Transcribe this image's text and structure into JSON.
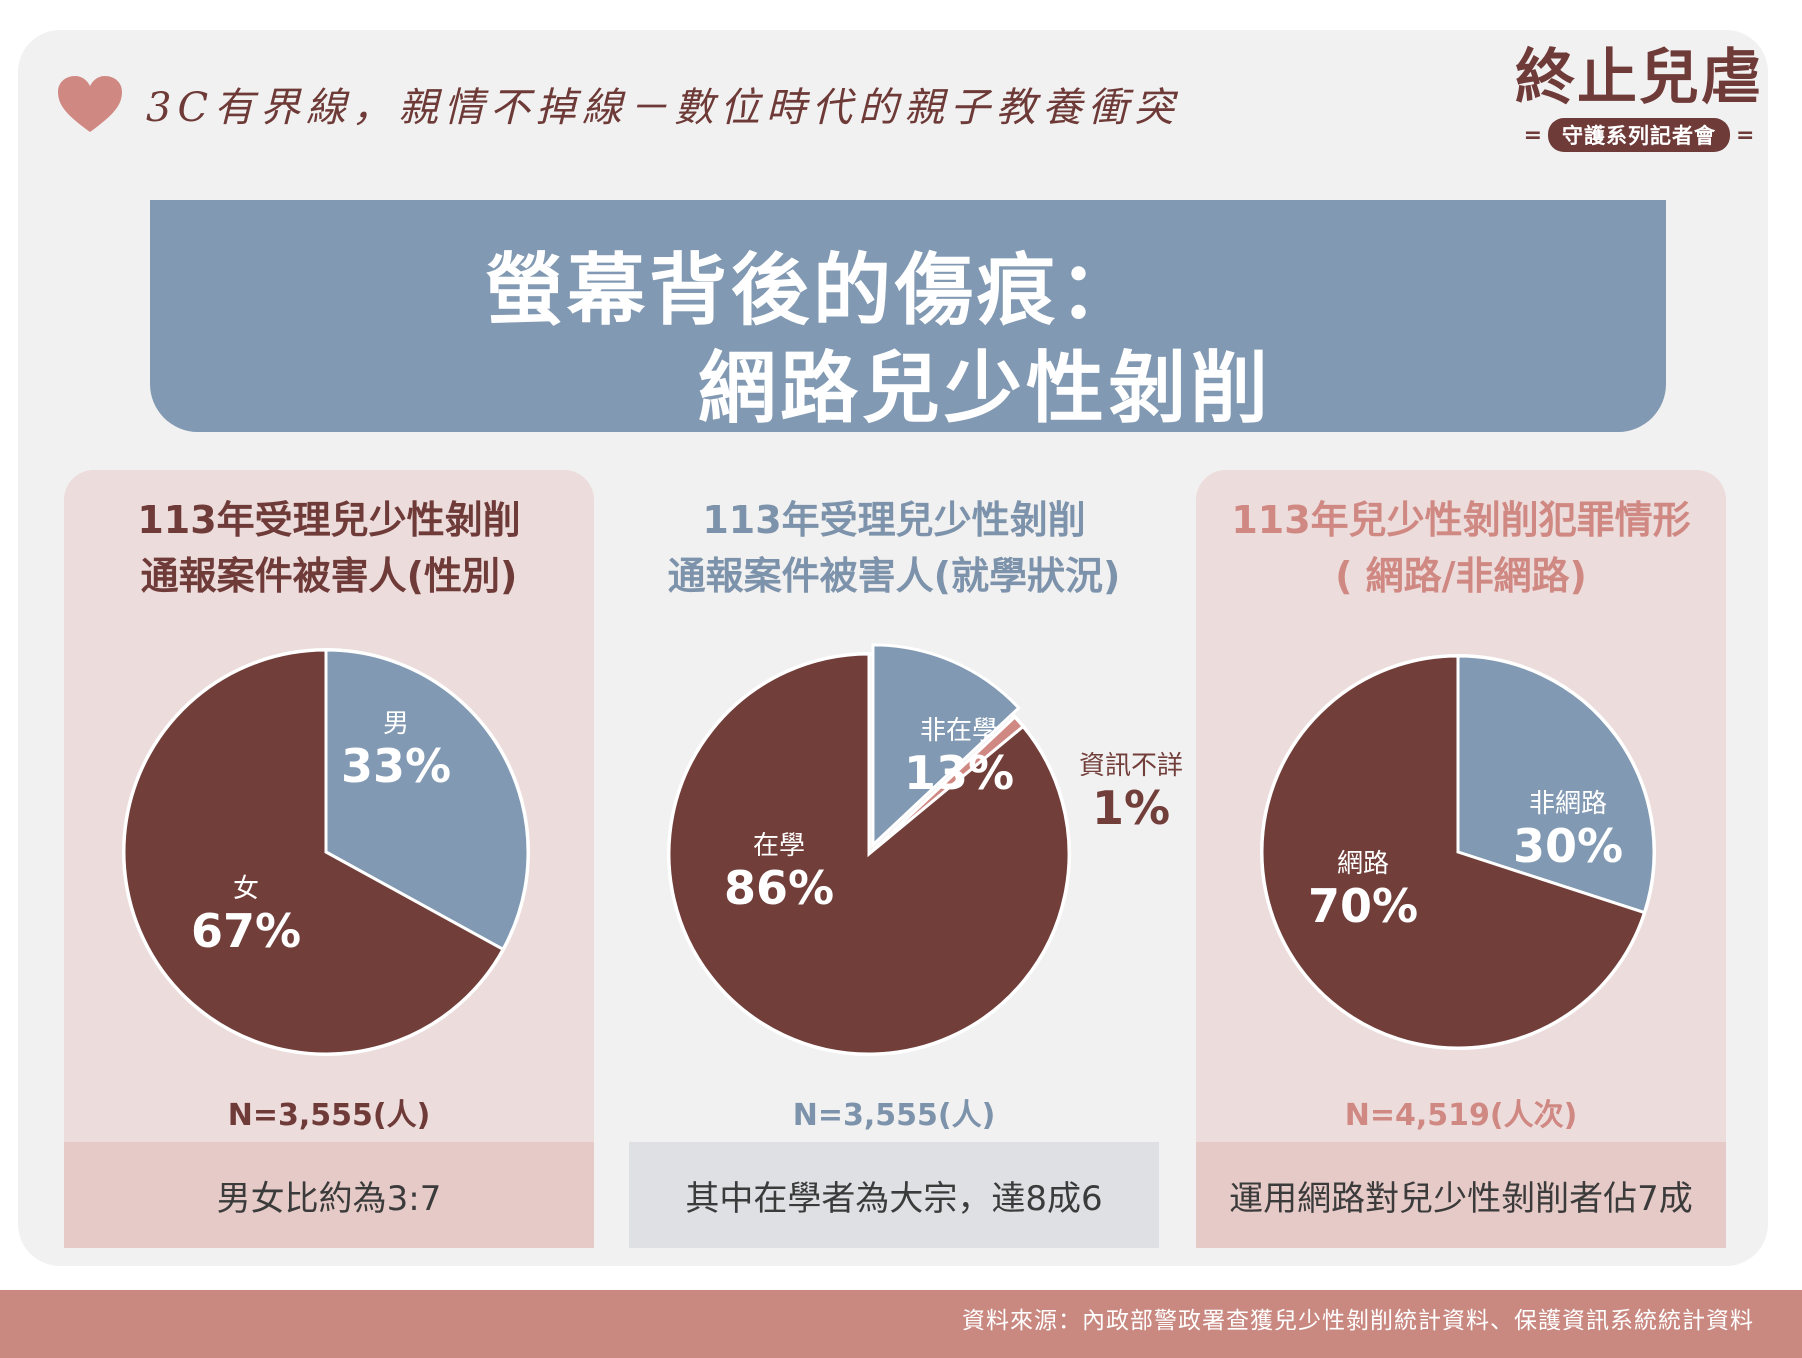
{
  "header": {
    "tagline": "3C有界線，親情不掉線－數位時代的親子教養衝突",
    "logo_title": "終止兒虐",
    "logo_subtitle": "守護系列記者會"
  },
  "banner": {
    "line1": "螢幕背後的傷痕：",
    "line2": "網路兒少性剝削"
  },
  "colors": {
    "maroon": "#713e3a",
    "blue_gray": "#8199b2",
    "pink": "#d08883",
    "panel_pink": "#ecdcdb",
    "footer_pink": "#e6cac7",
    "footer_gray": "#dee0e4",
    "source_bar": "#c98981"
  },
  "panels": [
    {
      "title_line1": "113年受理兒少性剝削",
      "title_line2": "通報案件被害人(性別)",
      "n": "N=3,555(人)",
      "summary": "男女比約為3:7"
    },
    {
      "title_line1": "113年受理兒少性剝削",
      "title_line2": "通報案件被害人(就學狀況)",
      "n": "N=3,555(人)",
      "summary": "其中在學者為大宗，達8成6"
    },
    {
      "title_line1": "113年兒少性剝削犯罪情形",
      "title_line2": "( 網路/非網路)",
      "n": "N=4,519(人次)",
      "summary": "運用網路對兒少性剝削者佔7成"
    }
  ],
  "chart_data": [
    {
      "type": "pie",
      "title": "113年受理兒少性剝削通報案件被害人(性別)",
      "n": "N=3,555(人)",
      "slices": [
        {
          "label": "男",
          "value": 33,
          "display": "33%",
          "color": "#8199b2"
        },
        {
          "label": "女",
          "value": 67,
          "display": "67%",
          "color": "#713e3a"
        }
      ]
    },
    {
      "type": "pie",
      "title": "113年受理兒少性剝削通報案件被害人(就學狀況)",
      "n": "N=3,555(人)",
      "slices": [
        {
          "label": "非在學",
          "value": 13,
          "display": "13%",
          "color": "#8199b2"
        },
        {
          "label": "資訊不詳",
          "value": 1,
          "display": "1%",
          "color": "#d08883"
        },
        {
          "label": "在學",
          "value": 86,
          "display": "86%",
          "color": "#713e3a"
        }
      ]
    },
    {
      "type": "pie",
      "title": "113年兒少性剝削犯罪情形( 網路/非網路)",
      "n": "N=4,519(人次)",
      "slices": [
        {
          "label": "非網路",
          "value": 30,
          "display": "30%",
          "color": "#8199b2"
        },
        {
          "label": "網路",
          "value": 70,
          "display": "70%",
          "color": "#713e3a"
        }
      ]
    }
  ],
  "source": "資料來源：內政部警政署查獲兒少性剝削統計資料、保護資訊系統統計資料"
}
